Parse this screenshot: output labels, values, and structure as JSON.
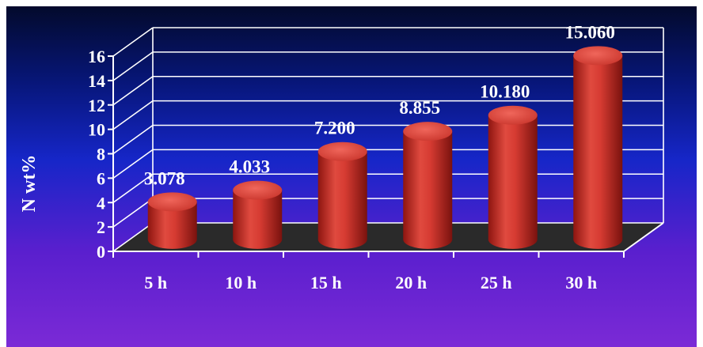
{
  "chart_data": {
    "type": "bar",
    "style": "3d-cylinder",
    "categories": [
      "5 h",
      "10 h",
      "15 h",
      "20 h",
      "25 h",
      "30 h"
    ],
    "values": [
      3.078,
      4.033,
      7.2,
      8.855,
      10.18,
      15.06
    ],
    "data_labels": [
      "3.078",
      "4.033",
      "7.200",
      "8.855",
      "10.180",
      "15.060"
    ],
    "title": "",
    "xlabel": "",
    "ylabel": "N wt%",
    "ylim": [
      0,
      16
    ],
    "yticks": [
      "0",
      "2",
      "4",
      "6",
      "8",
      "10",
      "12",
      "14",
      "16"
    ],
    "grid": true,
    "legend": "none",
    "colors": {
      "bar": "#d63b32",
      "floor": "#2a2a2a",
      "grid": "#ffffff",
      "text": "#ffffff"
    }
  }
}
